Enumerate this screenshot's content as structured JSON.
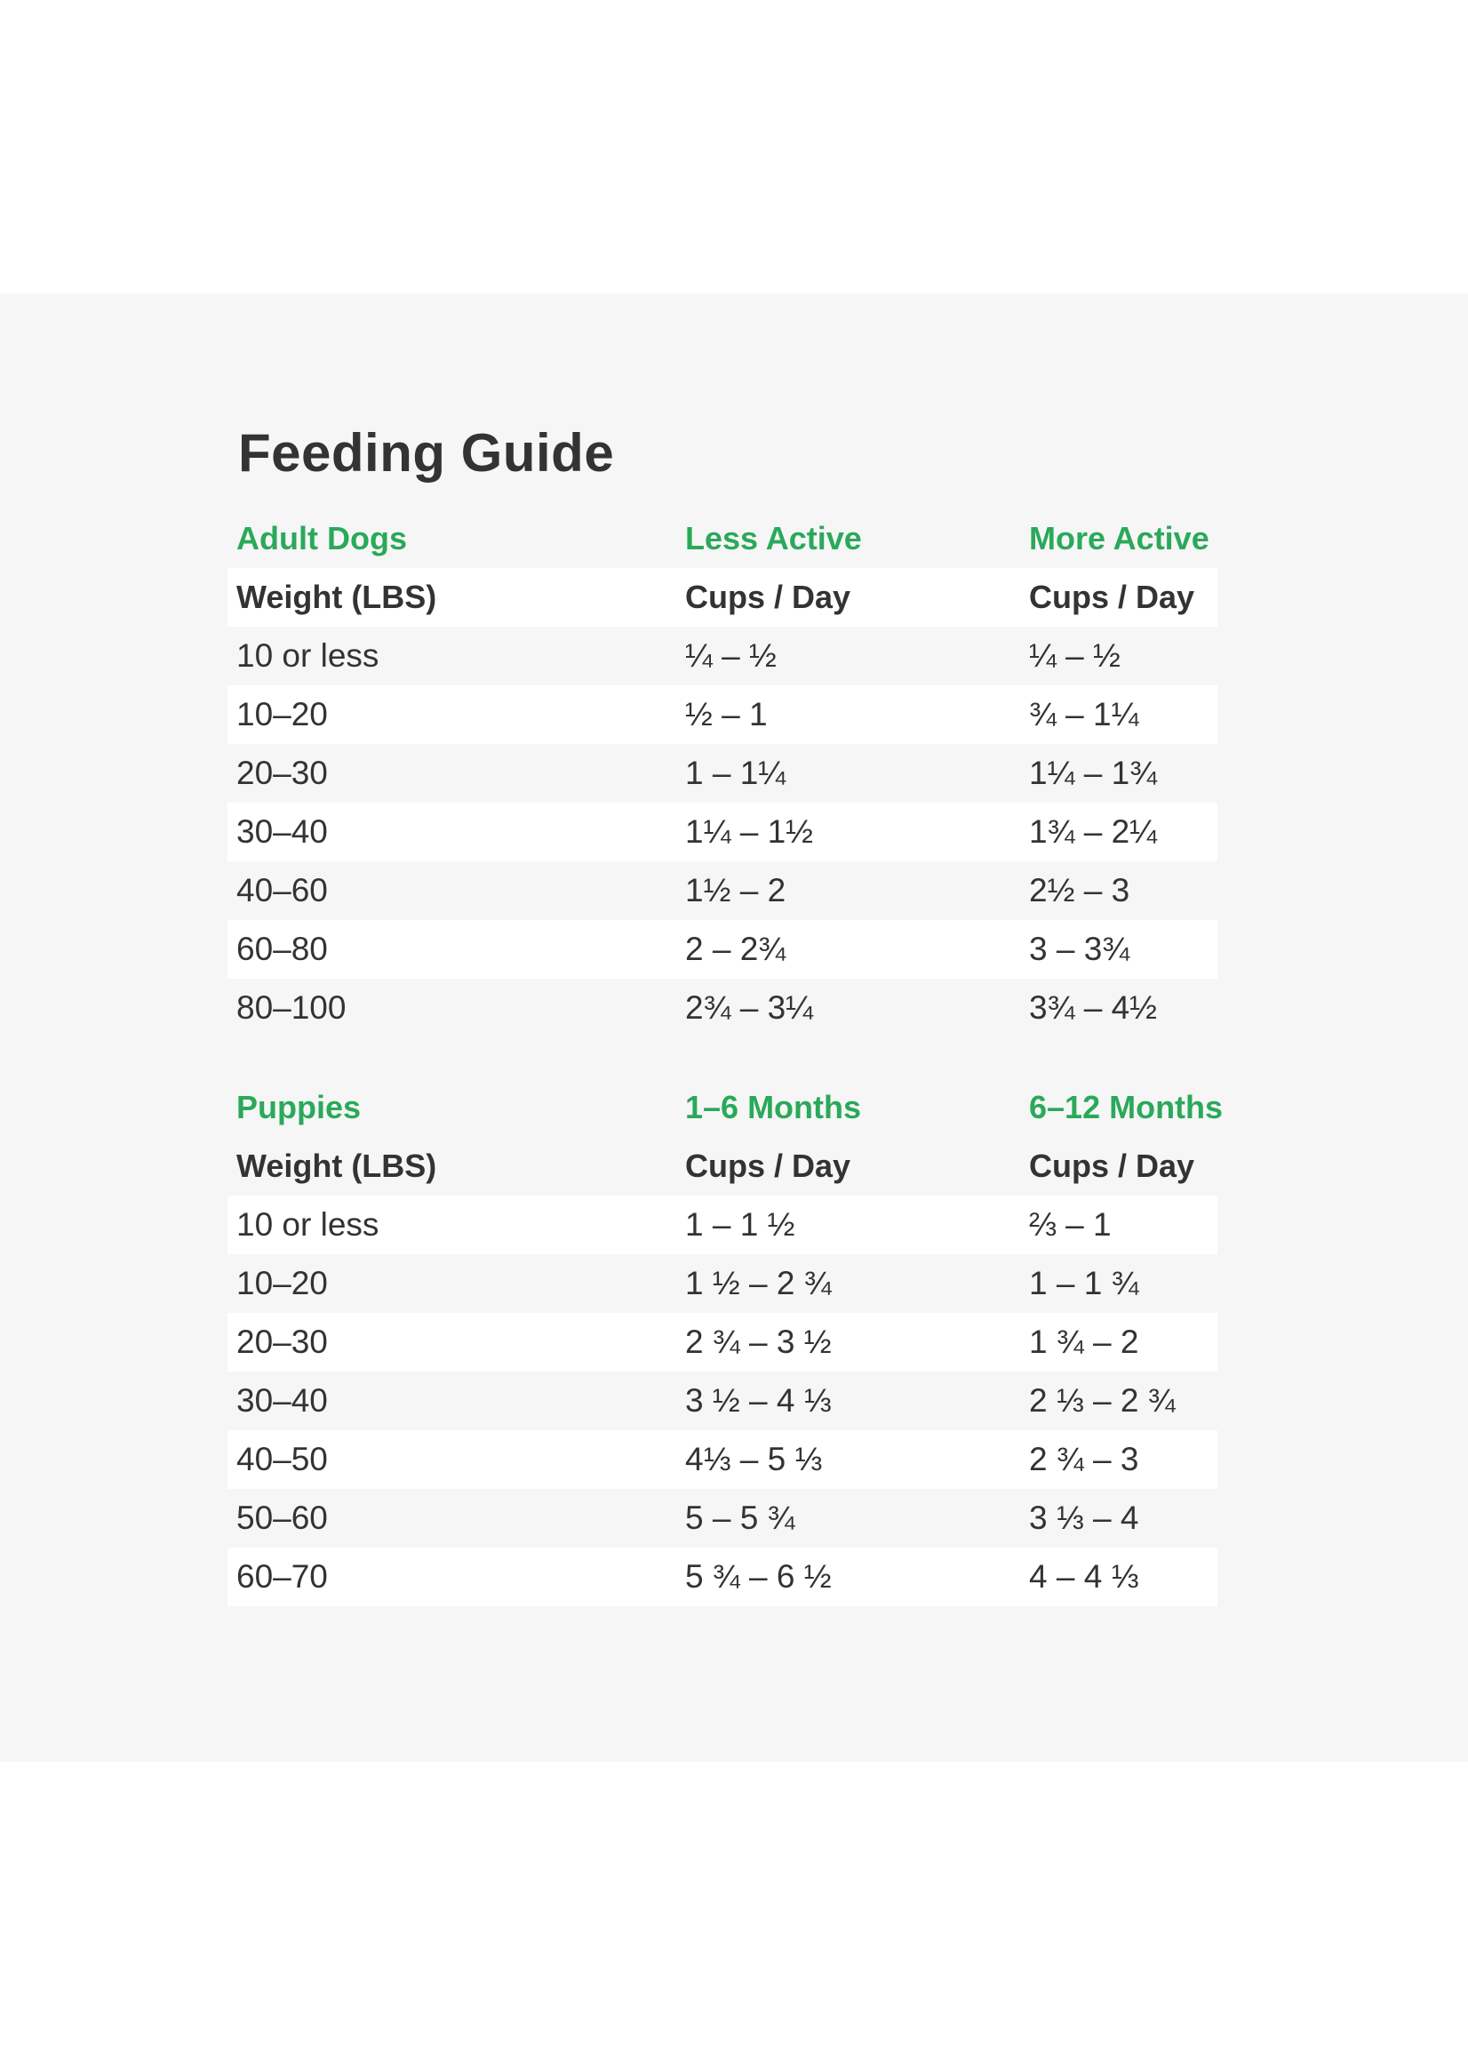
{
  "title": "Feeding Guide",
  "colors": {
    "accent": "#2aa95a",
    "text": "#333333",
    "panel": "#f6f6f6",
    "stripe": "#ffffff"
  },
  "adult": {
    "label": "Adult Dogs",
    "col2_label": "Less Active",
    "col3_label": "More Active",
    "header": [
      "Weight (LBS)",
      "Cups / Day",
      "Cups / Day"
    ],
    "rows": [
      [
        "10 or less",
        "¼ – ½",
        "¼ – ½"
      ],
      [
        "10–20",
        "½ – 1",
        "¾ – 1¼"
      ],
      [
        "20–30",
        "1 – 1¼",
        "1¼ – 1¾"
      ],
      [
        "30–40",
        "1¼ – 1½",
        "1¾ – 2¼"
      ],
      [
        "40–60",
        "1½ – 2",
        "2½ – 3"
      ],
      [
        "60–80",
        "2 – 2¾",
        "3 – 3¾"
      ],
      [
        "80–100",
        "2¾ – 3¼",
        "3¾ – 4½"
      ]
    ]
  },
  "puppies": {
    "label": "Puppies",
    "col2_label": "1–6 Months",
    "col3_label": "6–12 Months",
    "header": [
      "Weight (LBS)",
      "Cups / Day",
      "Cups / Day"
    ],
    "rows": [
      [
        "10 or less",
        "1 – 1 ½",
        "⅔ – 1"
      ],
      [
        "10–20",
        "1 ½ – 2 ¾",
        "1 – 1 ¾"
      ],
      [
        "20–30",
        "2 ¾ – 3 ½",
        "1 ¾ – 2"
      ],
      [
        "30–40",
        "3 ½ – 4 ⅓",
        "2 ⅓ – 2 ¾"
      ],
      [
        "40–50",
        "4⅓ – 5 ⅓",
        "2 ¾ – 3"
      ],
      [
        "50–60",
        "5 – 5 ¾",
        "3 ⅓ – 4"
      ],
      [
        "60–70",
        "5 ¾ – 6 ½",
        "4 – 4 ⅓"
      ]
    ]
  }
}
